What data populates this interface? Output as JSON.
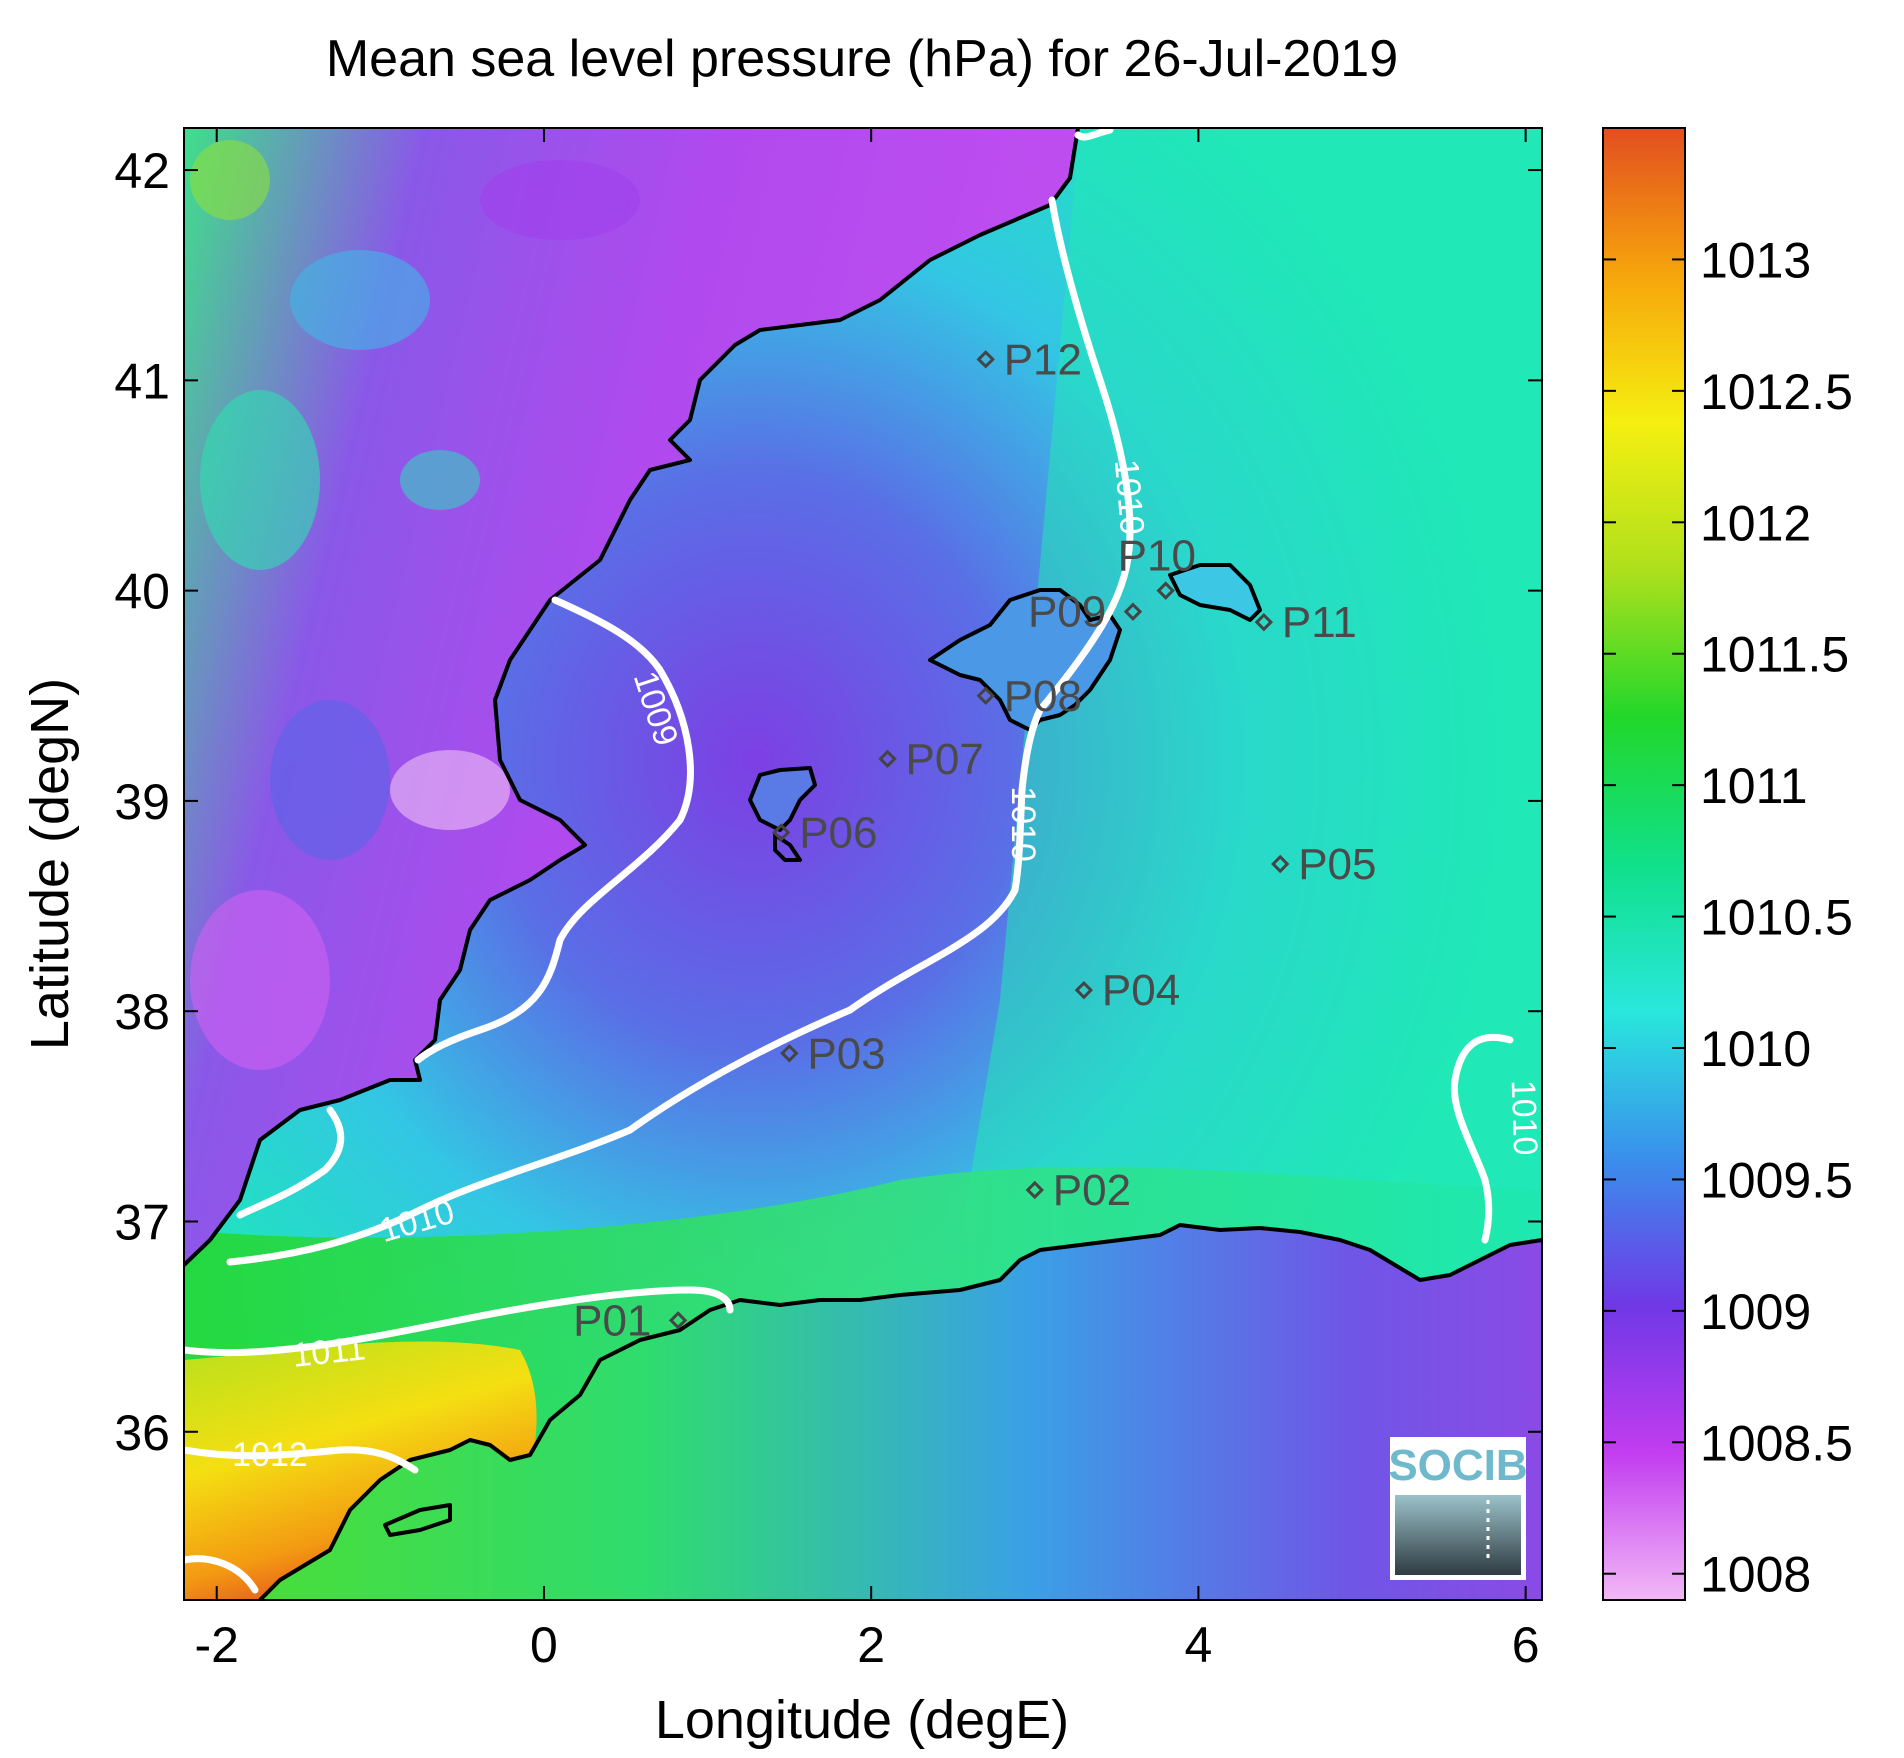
{
  "title": "Mean sea level pressure (hPa) for 26-Jul-2019",
  "xlabel": "Longitude (degE)",
  "ylabel": "Latitude (degN)",
  "x_ticks": [
    "-2",
    "0",
    "2",
    "4",
    "6"
  ],
  "y_ticks": [
    "42",
    "41",
    "40",
    "39",
    "38",
    "37",
    "36"
  ],
  "colorbar": {
    "ticks": [
      "1013",
      "1012.5",
      "1012",
      "1011.5",
      "1011",
      "1010.5",
      "1010",
      "1009.5",
      "1009",
      "1008.5",
      "1008"
    ],
    "range": [
      1007.9,
      1013.5
    ],
    "colors": [
      "#f2b8f6",
      "#c23df0",
      "#7038e6",
      "#3a8fec",
      "#29e7dd",
      "#10e08a",
      "#22d72a",
      "#aee01c",
      "#f5ef10",
      "#f6a50c",
      "#e24e20"
    ]
  },
  "contours": [
    {
      "label": "1009"
    },
    {
      "label": "1010"
    },
    {
      "label": "1010"
    },
    {
      "label": "1010"
    },
    {
      "label": "1010"
    },
    {
      "label": "1011"
    },
    {
      "label": "1012"
    }
  ],
  "points": [
    {
      "name": "P01",
      "lon": 0.82,
      "lat": 36.53
    },
    {
      "name": "P02",
      "lon": 3.0,
      "lat": 37.15
    },
    {
      "name": "P03",
      "lon": 1.5,
      "lat": 37.8
    },
    {
      "name": "P04",
      "lon": 3.3,
      "lat": 38.1
    },
    {
      "name": "P05",
      "lon": 4.5,
      "lat": 38.7
    },
    {
      "name": "P06",
      "lon": 1.45,
      "lat": 38.85
    },
    {
      "name": "P07",
      "lon": 2.1,
      "lat": 39.2
    },
    {
      "name": "P08",
      "lon": 2.7,
      "lat": 39.5
    },
    {
      "name": "P09",
      "lon": 3.6,
      "lat": 39.9
    },
    {
      "name": "P10",
      "lon": 3.8,
      "lat": 40.0
    },
    {
      "name": "P11",
      "lon": 4.4,
      "lat": 39.85
    },
    {
      "name": "P12",
      "lon": 2.7,
      "lat": 41.1
    }
  ],
  "logo": {
    "text": "SOCIB"
  }
}
